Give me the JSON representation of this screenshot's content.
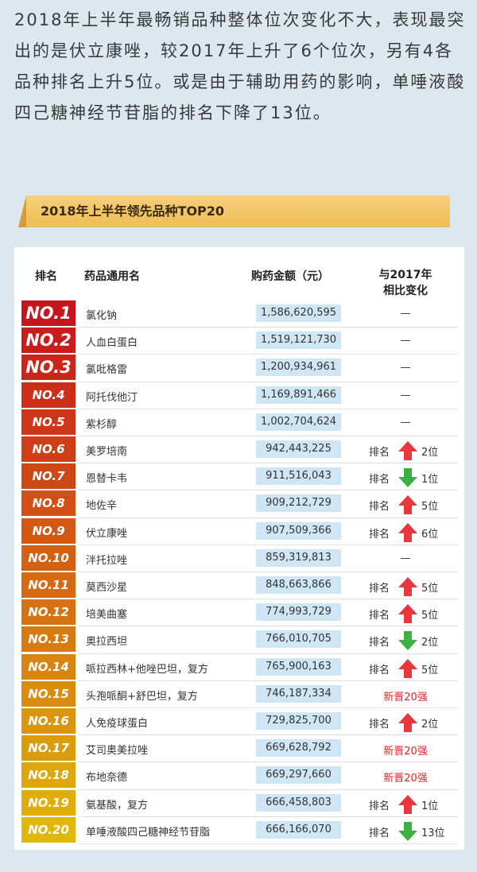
{
  "intro": "2018年上半年最畅销品种整体位次变化不大，表现最突出的是伏立康唑，较2017年上升了6个位次，另有4各品种排名上升5位。或是由于辅助用药的影响，单唾液酸四己糖神经节苷脂的排名下降了13位。",
  "banner": "2018年上半年领先品种TOP20",
  "table": {
    "header": {
      "rank": "排名",
      "name": "药品通用名",
      "amount": "购药金额（元）",
      "change": [
        "与2017年",
        "相比变化"
      ]
    },
    "rows": [
      {
        "rank": "NO.1",
        "name": "氯化钠",
        "amount": "1,586,620,595",
        "change": {
          "text": "—"
        }
      },
      {
        "rank": "NO.2",
        "name": "人血白蛋白",
        "amount": "1,519,121,730",
        "change": {
          "text": "—"
        }
      },
      {
        "rank": "NO.3",
        "name": "氯吡格雷",
        "amount": "1,200,934,961",
        "change": {
          "text": "—"
        }
      },
      {
        "rank": "NO.4",
        "name": "阿托伐他汀",
        "amount": "1,169,891,466",
        "change": {
          "text": "—"
        }
      },
      {
        "rank": "NO.5",
        "name": "紫杉醇",
        "amount": "1,002,704,624",
        "change": {
          "text": "—"
        }
      },
      {
        "rank": "NO.6",
        "name": "美罗培南",
        "amount": "942,443,225",
        "change": {
          "label": "排名",
          "direction": "up",
          "text": "2位"
        }
      },
      {
        "rank": "NO.7",
        "name": "恩替卡韦",
        "amount": "911,516,043",
        "change": {
          "label": "排名",
          "direction": "down",
          "text": "1位"
        }
      },
      {
        "rank": "NO.8",
        "name": "地佐辛",
        "amount": "909,212,729",
        "change": {
          "label": "排名",
          "direction": "up",
          "text": "5位"
        }
      },
      {
        "rank": "NO.9",
        "name": "伏立康唑",
        "amount": "907,509,366",
        "change": {
          "label": "排名",
          "direction": "up",
          "text": "6位"
        }
      },
      {
        "rank": "NO.10",
        "name": "泮托拉唑",
        "amount": "859,319,813",
        "change": {
          "text": "—"
        }
      },
      {
        "rank": "NO.11",
        "name": "莫西沙星",
        "amount": "848,663,866",
        "change": {
          "label": "排名",
          "direction": "up",
          "text": "5位"
        }
      },
      {
        "rank": "NO.12",
        "name": "培美曲塞",
        "amount": "774,993,729",
        "change": {
          "label": "排名",
          "direction": "up",
          "text": "5位"
        }
      },
      {
        "rank": "NO.13",
        "name": "奥拉西坦",
        "amount": "766,010,705",
        "change": {
          "label": "排名",
          "direction": "down",
          "text": "2位"
        }
      },
      {
        "rank": "NO.14",
        "name": "哌拉西林+他唑巴坦，复方",
        "amount": "765,900,163",
        "change": {
          "label": "排名",
          "direction": "up",
          "text": "5位"
        }
      },
      {
        "rank": "NO.15",
        "name": "头孢哌酮+舒巴坦，复方",
        "amount": "746,187,334",
        "change": {
          "text": "新晋20强",
          "highlight": true
        }
      },
      {
        "rank": "NO.16",
        "name": "人免疫球蛋白",
        "amount": "729,825,700",
        "change": {
          "label": "排名",
          "direction": "up",
          "text": "2位"
        }
      },
      {
        "rank": "NO.17",
        "name": "艾司奥美拉唑",
        "amount": "669,628,792",
        "change": {
          "text": "新晋20强",
          "highlight": true
        }
      },
      {
        "rank": "NO.18",
        "name": "布地奈德",
        "amount": "669,297,660",
        "change": {
          "text": "新晋20强",
          "highlight": true
        }
      },
      {
        "rank": "NO.19",
        "name": "氨基酸，复方",
        "amount": "666,458,803",
        "change": {
          "label": "排名",
          "direction": "up",
          "text": "1位"
        }
      },
      {
        "rank": "NO.20",
        "name": "单唾液酸四己糖神经节苷脂",
        "amount": "666,166,070",
        "change": {
          "label": "排名",
          "direction": "down",
          "text": "13位"
        }
      }
    ]
  }
}
